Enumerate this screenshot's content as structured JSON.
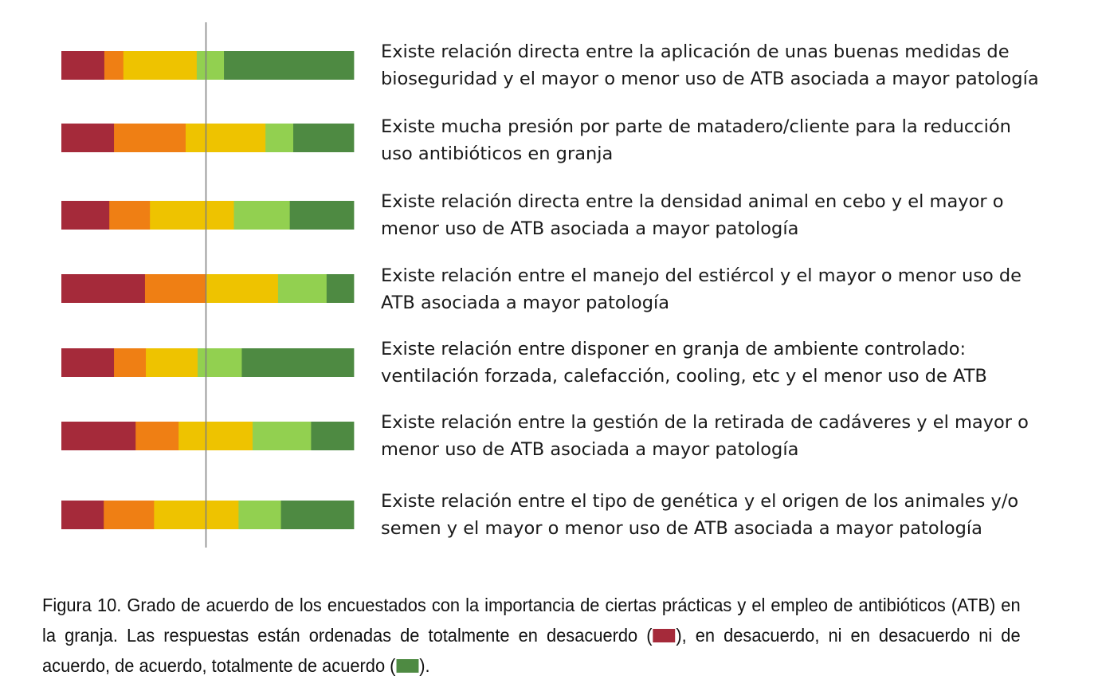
{
  "colors": {
    "totalmente_desacuerdo": "#a52a3a",
    "desacuerdo": "#ef7f14",
    "ni_ni": "#eec300",
    "de_acuerdo": "#92d050",
    "totalmente_acuerdo": "#4e8a42",
    "midline": "#7f7f7f"
  },
  "chart_data": {
    "type": "bar",
    "orientation": "horizontal",
    "stacked": true,
    "normalized": true,
    "xlim": [
      0,
      100
    ],
    "midline_at": 50,
    "grid": false,
    "legend": "none",
    "categories": [
      "Existe relación directa entre la aplicación de unas buenas medidas de bioseguridad y el mayor o menor uso de ATB asociada a mayor patología",
      "Existe mucha presión por parte de matadero/cliente para la reducción uso antibióticos en granja",
      "Existe relación directa entre la densidad animal en cebo y el mayor o menor uso de ATB asociada a mayor patología",
      "Existe relación entre el manejo del estiércol y el mayor o menor uso de ATB asociada a mayor patología",
      "Existe relación entre disponer en granja de ambiente controlado: ventilación forzada, calefacción, cooling, etc y el menor uso de ATB",
      "Existe relación entre la gestión de la retirada de cadáveres y el mayor o menor uso de ATB asociada a mayor patología",
      "Existe relación entre el tipo de genética y el origen de los animales y/o semen y el mayor o menor uso de ATB asociada a mayor patología"
    ],
    "series": [
      {
        "key": "totalmente_desacuerdo",
        "values": [
          14.7,
          18.0,
          16.4,
          28.6,
          18.0,
          25.4,
          14.5
        ]
      },
      {
        "key": "desacuerdo",
        "values": [
          6.5,
          24.5,
          13.9,
          20.7,
          10.9,
          14.7,
          17.2
        ]
      },
      {
        "key": "ni_ni",
        "values": [
          25.1,
          27.3,
          28.7,
          24.8,
          17.7,
          25.3,
          28.9
        ]
      },
      {
        "key": "de_acuerdo",
        "values": [
          9.3,
          9.5,
          19.1,
          16.6,
          15.1,
          20.0,
          14.5
        ]
      },
      {
        "key": "totalmente_acuerdo",
        "values": [
          44.4,
          20.7,
          21.9,
          9.3,
          38.3,
          14.6,
          24.9
        ]
      }
    ]
  },
  "statements": [
    {
      "line1": "Existe relación directa entre la aplicación de unas buenas medidas de",
      "line2": "bioseguridad y el mayor o menor uso de ATB asociada a mayor patología"
    },
    {
      "line1": "Existe mucha presión por parte de matadero/cliente para la reducción",
      "line2": "uso antibióticos en granja"
    },
    {
      "line1": "Existe relación directa entre la densidad animal en cebo y el mayor o",
      "line2": "menor uso de ATB asociada a mayor patología"
    },
    {
      "line1": "Existe relación entre el manejo del estiércol y el mayor o menor uso de",
      "line2": "ATB asociada a mayor patología"
    },
    {
      "line1": "Existe relación entre disponer en granja de ambiente controlado:",
      "line2": "ventilación forzada, calefacción, cooling, etc y el menor uso de ATB"
    },
    {
      "line1": "Existe relación entre la gestión de la retirada de cadáveres y el mayor o",
      "line2": "menor uso de ATB asociada a mayor patología"
    },
    {
      "line1": "Existe relación entre el tipo de genética y el origen de los animales y/o",
      "line2": "semen y el mayor o menor uso de ATB asociada a mayor patología"
    }
  ],
  "caption": {
    "part1": "Figura 10. Grado de acuerdo de los encuestados con la importancia de ciertas prácticas y el empleo de antibióticos (ATB) en la granja. Las respuestas están ordenadas de totalmente en desacuerdo (",
    "part2": "), en desacuerdo, ni en desacuerdo ni de acuerdo, de acuerdo, totalmente de acuerdo (",
    "part3": ")."
  }
}
